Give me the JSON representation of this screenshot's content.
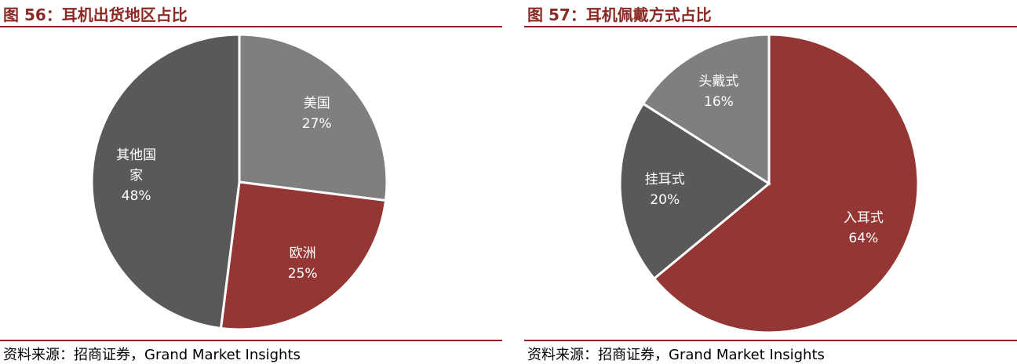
{
  "chart_data": [
    {
      "type": "pie",
      "title": "图 56：耳机出货地区占比",
      "categories": [
        "美国",
        "欧洲",
        "其他国家"
      ],
      "values": [
        27,
        25,
        48
      ],
      "value_labels": [
        "27%",
        "25%",
        "48%"
      ],
      "colors": [
        "#7f7f7f",
        "#943634",
        "#595959"
      ],
      "source": "资料来源：招商证券，Grand Market Insights"
    },
    {
      "type": "pie",
      "title": "图 57：耳机佩戴方式占比",
      "categories": [
        "入耳式",
        "挂耳式",
        "头戴式"
      ],
      "values": [
        64,
        20,
        16
      ],
      "value_labels": [
        "64%",
        "20%",
        "16%"
      ],
      "colors": [
        "#943634",
        "#595959",
        "#7f7f7f"
      ],
      "source": "资料来源：招商证券，Grand Market Insights"
    }
  ]
}
